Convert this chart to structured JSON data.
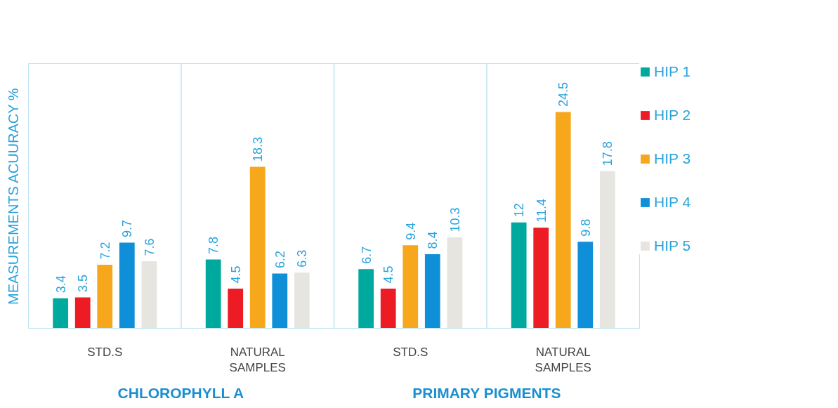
{
  "chart_data": {
    "type": "bar",
    "ylabel": "MEASUREMENTS ACUURACY %",
    "categories": [
      "STD.S",
      "NATURAL SAMPLES",
      "STD.S",
      "NATURAL SAMPLES"
    ],
    "series": [
      {
        "name": "HIP 1",
        "color": "#00a99d",
        "values": [
          3.4,
          7.8,
          6.7,
          12
        ]
      },
      {
        "name": "HIP 2",
        "color": "#ed1c24",
        "values": [
          3.5,
          4.5,
          4.5,
          11.4
        ]
      },
      {
        "name": "HIP 3",
        "color": "#f7a71c",
        "values": [
          7.2,
          18.3,
          9.4,
          24.5
        ]
      },
      {
        "name": "HIP 4",
        "color": "#0e8fd8",
        "values": [
          9.7,
          6.2,
          8.4,
          9.8
        ]
      },
      {
        "name": "HIP 5",
        "color": "#e6e5e0",
        "values": [
          7.6,
          6.3,
          10.3,
          17.8
        ]
      }
    ],
    "annotations": [
      "CHLOROPHYLL A",
      "PRIMARY PIGMENTS"
    ],
    "ylim": [
      0,
      30
    ],
    "data_labels": true,
    "tick_labels": "x",
    "grid": false,
    "legend": "right"
  }
}
